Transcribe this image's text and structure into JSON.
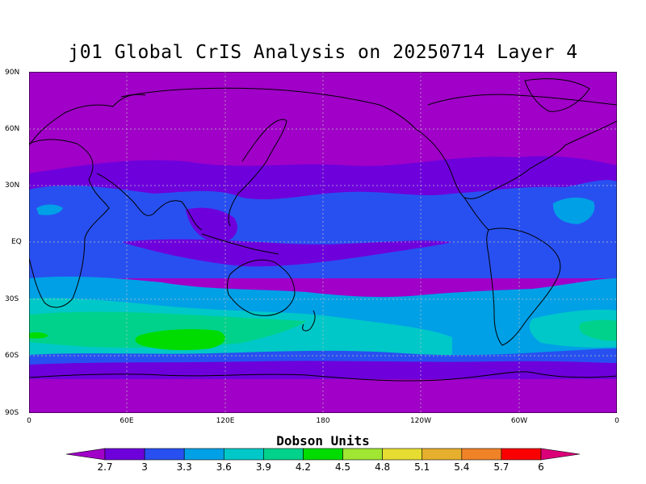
{
  "title": "j01 Global CrIS Analysis on 20250714 Layer 4",
  "lat_labels": [
    "90N",
    "60N",
    "30N",
    "EQ",
    "30S",
    "60S",
    "90S"
  ],
  "lon_labels": [
    "0",
    "60E",
    "120E",
    "180",
    "120W",
    "60W",
    "0"
  ],
  "colorbar": {
    "label": "Dobson Units",
    "ticks": [
      "2.7",
      "3",
      "3.3",
      "3.6",
      "3.9",
      "4.2",
      "4.5",
      "4.8",
      "5.1",
      "5.4",
      "5.7",
      "6"
    ],
    "colors": [
      "#a000c8",
      "#6e00dc",
      "#2850f0",
      "#00a0e6",
      "#00c8c8",
      "#00d28c",
      "#00dc00",
      "#a0e632",
      "#e6dc32",
      "#e6af2d",
      "#f08228",
      "#fa0000",
      "#dc0078"
    ]
  },
  "field_bands": [
    {
      "lat_range": [
        60,
        90
      ],
      "value": "2.7"
    },
    {
      "lat_range": [
        40,
        60
      ],
      "value": "2.7"
    },
    {
      "lat_range": [
        20,
        40
      ],
      "value": "3"
    },
    {
      "lat_range": [
        0,
        20
      ],
      "value": "3.3"
    },
    {
      "lat_range": [
        -15,
        0
      ],
      "value": "3.3"
    },
    {
      "lat_range": [
        -30,
        -15
      ],
      "value": "3.3"
    },
    {
      "lat_range": [
        -40,
        -30
      ],
      "value": "3.6"
    },
    {
      "lat_range": [
        -55,
        -40
      ],
      "value": "3.9"
    },
    {
      "lat_range": [
        -65,
        -55
      ],
      "value": "3"
    },
    {
      "lat_range": [
        -90,
        -65
      ],
      "value": "2.7"
    }
  ]
}
